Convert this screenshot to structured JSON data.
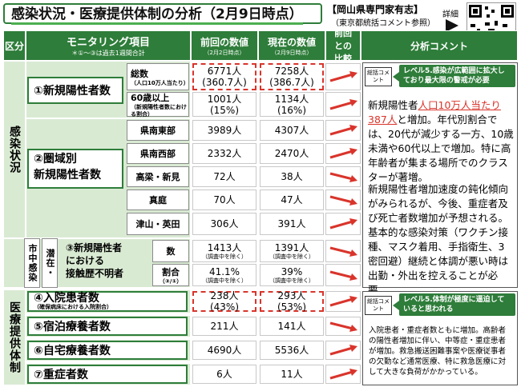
{
  "title": "感染状況・医療提供体制の分析（2月9日時点）",
  "source": {
    "main": "【岡山県専門家有志】",
    "sub": "（東京都統括コメント参照）"
  },
  "detail_label": "詳細",
  "header": {
    "category": "区分",
    "item": "モニタリング項目",
    "item_note": "＊①～③は過去1週間合計",
    "prev": "前回の数値",
    "prev_date": "（2月2日時点）",
    "curr": "現在の数値",
    "curr_date": "（2月9日時点）",
    "compare": "前回との比較",
    "comment": "分析コメント"
  },
  "sections": {
    "infection": "感染状況",
    "city": "市中感染",
    "latent": "潜在・",
    "medical": "医療提供体制"
  },
  "rows": {
    "r1": {
      "label": "①新規陽性者数",
      "total": {
        "name": "総数",
        "note": "（人口10万人当たり）",
        "prev": "6771人",
        "prev2": "(360.7人)",
        "curr": "7258人",
        "curr2": "(386.7人)"
      },
      "elder": {
        "name": "60歳以上",
        "note": "（新規陽性者数における割合）",
        "prev": "1001人",
        "prev2": "(15%)",
        "curr": "1134人",
        "curr2": "(16%)"
      }
    },
    "r2": {
      "label1": "②圏域別",
      "label2": "新規陽性者数",
      "areas": [
        {
          "name": "県南東部",
          "prev": "3989人",
          "curr": "4307人"
        },
        {
          "name": "県南西部",
          "prev": "2332人",
          "curr": "2470人"
        },
        {
          "name": "高梁・新見",
          "prev": "72人",
          "curr": "38人"
        },
        {
          "name": "真庭",
          "prev": "70人",
          "curr": "47人"
        },
        {
          "name": "津山・英田",
          "prev": "306人",
          "curr": "391人"
        }
      ]
    },
    "r3": {
      "label1": "③新規陽性者",
      "label2": "における",
      "label3": "接触歴不明者",
      "count": {
        "name": "数",
        "prev": "1413人",
        "prev_note": "（調査中を除く）",
        "curr": "1391人",
        "curr_note": "（調査中を除く）"
      },
      "ratio": {
        "name": "割合",
        "name_note": "（③/①）",
        "prev": "41.1%",
        "prev_note": "（調査中を除く）",
        "curr": "39%",
        "curr_note": "（調査中を除く）"
      }
    },
    "r4": {
      "label": "④入院患者数",
      "note": "（確保病床における入院割合）",
      "prev": "238人",
      "prev2": "(43%)",
      "curr": "293人",
      "curr2": "(53%)"
    },
    "r5": {
      "label": "⑤宿泊療養者数",
      "prev": "211人",
      "curr": "141人"
    },
    "r6": {
      "label": "⑥自宅療養者数",
      "prev": "4690人",
      "curr": "5536人"
    },
    "r7": {
      "label": "⑦重症者数",
      "prev": "6人",
      "curr": "11人"
    }
  },
  "comments": {
    "summary_tag": "総括コメント",
    "infection_level": "レベル5.感染が広範囲に拡大しており最大限の警戒が必要",
    "analysis_pre": "新規陽性者",
    "analysis_red": "人口10万人当たり387人",
    "analysis_post": "と増加。年代別割合では、20代が減少する一方、10歳未満や60代以上で増加。特に高年齢者が集まる場所でのクラスターが著増。",
    "analysis_2": "新規陽性者増加速度の鈍化傾向がみられるが、今後、重症者及び死亡者数増加が予想される。基本的な感染対策（ワクチン接種、マスク着用、手指衛生、3密回避）継続と体調が悪い時は出勤・外出を控えることが必要。",
    "medical_level": "レベル5.体制が極度に逼迫していると思われる",
    "medical_text": "入院患者・重症者数ともに増加。高齢者の陽性者増加に伴い、中等症・重症患者が増加。救急搬送困難事案や医療従事者の欠勤など通常医療、特に救急医療に対して大きな負荷がかかっている。"
  },
  "colors": {
    "green": "#2e7d3a",
    "light_green": "#d9ead3",
    "arrow": "#d9342b"
  }
}
